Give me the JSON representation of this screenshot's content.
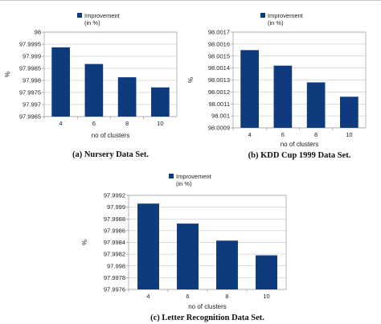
{
  "chart_data": [
    {
      "type": "bar",
      "caption": "(a) Nursery Data Set.",
      "categories": [
        "4",
        "6",
        "8",
        "10"
      ],
      "series": [
        {
          "name": "Improvement\n(in %)",
          "values": [
            97.99937,
            97.99868,
            97.99813,
            97.99771
          ]
        }
      ],
      "xlabel": "no of clusters",
      "ylabel": "%",
      "ylim": [
        97.9965,
        98
      ],
      "yticks": [
        "98",
        "97.9995",
        "97.999",
        "97.9985",
        "97.998",
        "97.9975",
        "97.997",
        "97.9965"
      ],
      "color": "#0e3b7d",
      "grid": true,
      "legend": "top"
    },
    {
      "type": "bar",
      "caption": "(b) KDD Cup 1999 Data Set.",
      "categories": [
        "4",
        "6",
        "8",
        "10"
      ],
      "series": [
        {
          "name": "Improvement\n(in %)",
          "values": [
            98.00155,
            98.00142,
            98.00128,
            98.00116
          ]
        }
      ],
      "xlabel": "no of clusters",
      "ylabel": "%",
      "ylim": [
        98.0009,
        98.0017
      ],
      "yticks": [
        "98.0017",
        "98.0016",
        "98.0015",
        "98.0014",
        "98.0013",
        "98.0012",
        "98.0011",
        "98.001",
        "98.0009"
      ],
      "color": "#0e3b7d",
      "grid": true,
      "legend": "top"
    },
    {
      "type": "bar",
      "caption": "(c) Letter Recognition Data Set.",
      "categories": [
        "4",
        "6",
        "8",
        "10"
      ],
      "series": [
        {
          "name": "Improvement\n(in %)",
          "values": [
            97.99906,
            97.99872,
            97.99843,
            97.99818
          ]
        }
      ],
      "xlabel": "no of clusters",
      "ylabel": "%",
      "ylim": [
        97.9976,
        97.9992
      ],
      "yticks": [
        "97.9992",
        "97.999",
        "97.9988",
        "97.9986",
        "97.9984",
        "97.9982",
        "97.998",
        "97.9978",
        "97.9976"
      ],
      "color": "#0e3b7d",
      "grid": true,
      "legend": "top"
    }
  ]
}
